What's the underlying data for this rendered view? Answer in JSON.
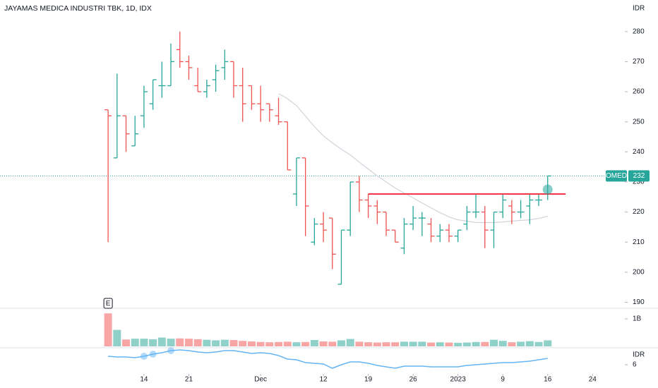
{
  "chart_data": {
    "type": "ohlc",
    "title": "JAYAMAS MEDICA INDUSTRI TBK, 1D, IDX",
    "currency": "IDR",
    "up_color": "#26a69a",
    "down_color": "#ef5350",
    "volume_up_color": "#8fd0c9",
    "volume_down_color": "#f7a6a5",
    "open": [
      254,
      238,
      252,
      242,
      252,
      256,
      262,
      262,
      274,
      270,
      262,
      260,
      264,
      268,
      270,
      262,
      262,
      256,
      256,
      252,
      250,
      226,
      238,
      210,
      216,
      218,
      196,
      214,
      230,
      224,
      222,
      220,
      214,
      208,
      216,
      218,
      216,
      212,
      214,
      212,
      216,
      220,
      220,
      214,
      220,
      222,
      220,
      222,
      224,
      226
    ],
    "high": [
      254,
      266,
      252,
      252,
      262,
      264,
      270,
      276,
      280,
      272,
      268,
      264,
      269,
      274,
      270,
      268,
      262,
      262,
      256,
      258,
      250,
      238,
      238,
      218,
      220,
      218,
      214,
      230,
      232,
      226,
      224,
      220,
      214,
      218,
      222,
      220,
      218,
      216,
      216,
      214,
      222,
      226,
      222,
      220,
      226,
      224,
      224,
      226,
      226,
      232
    ],
    "low": [
      210,
      238,
      240,
      242,
      248,
      254,
      258,
      262,
      268,
      264,
      260,
      258,
      260,
      264,
      258,
      250,
      254,
      250,
      250,
      249,
      234,
      222,
      212,
      209,
      210,
      201,
      196,
      212,
      220,
      218,
      216,
      212,
      210,
      206,
      214,
      212,
      210,
      210,
      210,
      210,
      214,
      218,
      208,
      208,
      218,
      216,
      218,
      216,
      222,
      224
    ],
    "close": [
      252,
      252,
      246,
      246,
      260,
      264,
      262,
      270,
      270,
      268,
      260,
      262,
      267,
      270,
      262,
      256,
      256,
      254,
      254,
      250,
      234,
      238,
      222,
      216,
      214,
      206,
      214,
      230,
      224,
      222,
      220,
      214,
      210,
      216,
      218,
      218,
      212,
      214,
      212,
      214,
      220,
      220,
      214,
      220,
      224,
      220,
      220,
      224,
      224,
      232
    ],
    "volume": [
      1200000000,
      600000000,
      250000000,
      280000000,
      280000000,
      260000000,
      320000000,
      280000000,
      290000000,
      280000000,
      260000000,
      240000000,
      220000000,
      240000000,
      230000000,
      200000000,
      180000000,
      160000000,
      150000000,
      160000000,
      170000000,
      150000000,
      160000000,
      230000000,
      180000000,
      170000000,
      220000000,
      270000000,
      170000000,
      150000000,
      140000000,
      150000000,
      150000000,
      170000000,
      170000000,
      170000000,
      140000000,
      150000000,
      140000000,
      130000000,
      140000000,
      160000000,
      160000000,
      240000000,
      200000000,
      150000000,
      170000000,
      190000000,
      160000000,
      220000000
    ],
    "ma": [
      null,
      null,
      null,
      null,
      null,
      null,
      null,
      null,
      null,
      null,
      null,
      null,
      null,
      null,
      null,
      null,
      null,
      null,
      null,
      259.4,
      257.7,
      255.4,
      251.9,
      248.4,
      245.3,
      243,
      240.9,
      239,
      236.6,
      234.3,
      232,
      230,
      228,
      226.3,
      224.7,
      223,
      221.4,
      219.8,
      218.4,
      217.4,
      217,
      216.5,
      216.5,
      216.5,
      216.7,
      217,
      217.2,
      217.4,
      217.9,
      218.6
    ],
    "ma_color": "#d1d4dc",
    "indicator": [
      9,
      8.75,
      8.75,
      8.5,
      9,
      9.75,
      10.25,
      11,
      11.25,
      11,
      10.5,
      10.25,
      10.5,
      11,
      11,
      10.5,
      10,
      10.25,
      10,
      9.25,
      8,
      7.75,
      6.75,
      6.5,
      6.25,
      4.75,
      6,
      7,
      7,
      6.5,
      5.75,
      5.25,
      4.75,
      5.5,
      5.5,
      5.5,
      5.25,
      5.25,
      5.25,
      5.25,
      5.75,
      6,
      6.25,
      6.5,
      6.75,
      6.75,
      7,
      7.25,
      7.75,
      8.25
    ],
    "indicator_color": "#64b5f6",
    "indicator_dots": [
      4,
      5,
      7
    ],
    "indicator_unit": "IDR",
    "indicator_ylim": [
      3.25,
      12
    ],
    "indicator_yticks": [
      6
    ],
    "xlim": [
      -12.05,
      57.6
    ],
    "xticks": [
      {
        "value": 4,
        "label": "14"
      },
      {
        "value": 9,
        "label": "21"
      },
      {
        "value": 17,
        "label": "Dec"
      },
      {
        "value": 24,
        "label": "12"
      },
      {
        "value": 29,
        "label": "19"
      },
      {
        "value": 34,
        "label": "26"
      },
      {
        "value": 39,
        "label": "2023"
      },
      {
        "value": 44,
        "label": "9"
      },
      {
        "value": 49,
        "label": "16"
      },
      {
        "value": 54,
        "label": "24"
      }
    ],
    "ylim": [
      188,
      290.5
    ],
    "yticks": [
      190,
      200,
      210,
      220,
      230,
      240,
      250,
      260,
      270,
      280
    ],
    "volume_ylim": [
      0,
      1385000000
    ],
    "volume_yticks": [
      {
        "value": 1000000000,
        "label": "1B"
      }
    ],
    "hline": {
      "value": 226,
      "from": 29,
      "to": 51,
      "color": "#f23645"
    },
    "last_price": {
      "name": "OMED",
      "value": 232,
      "color": "#26a69a"
    },
    "marker": {
      "x": 49,
      "value": 227.5,
      "color": "#26a69a"
    },
    "event": {
      "x": 0,
      "label": "E"
    }
  }
}
